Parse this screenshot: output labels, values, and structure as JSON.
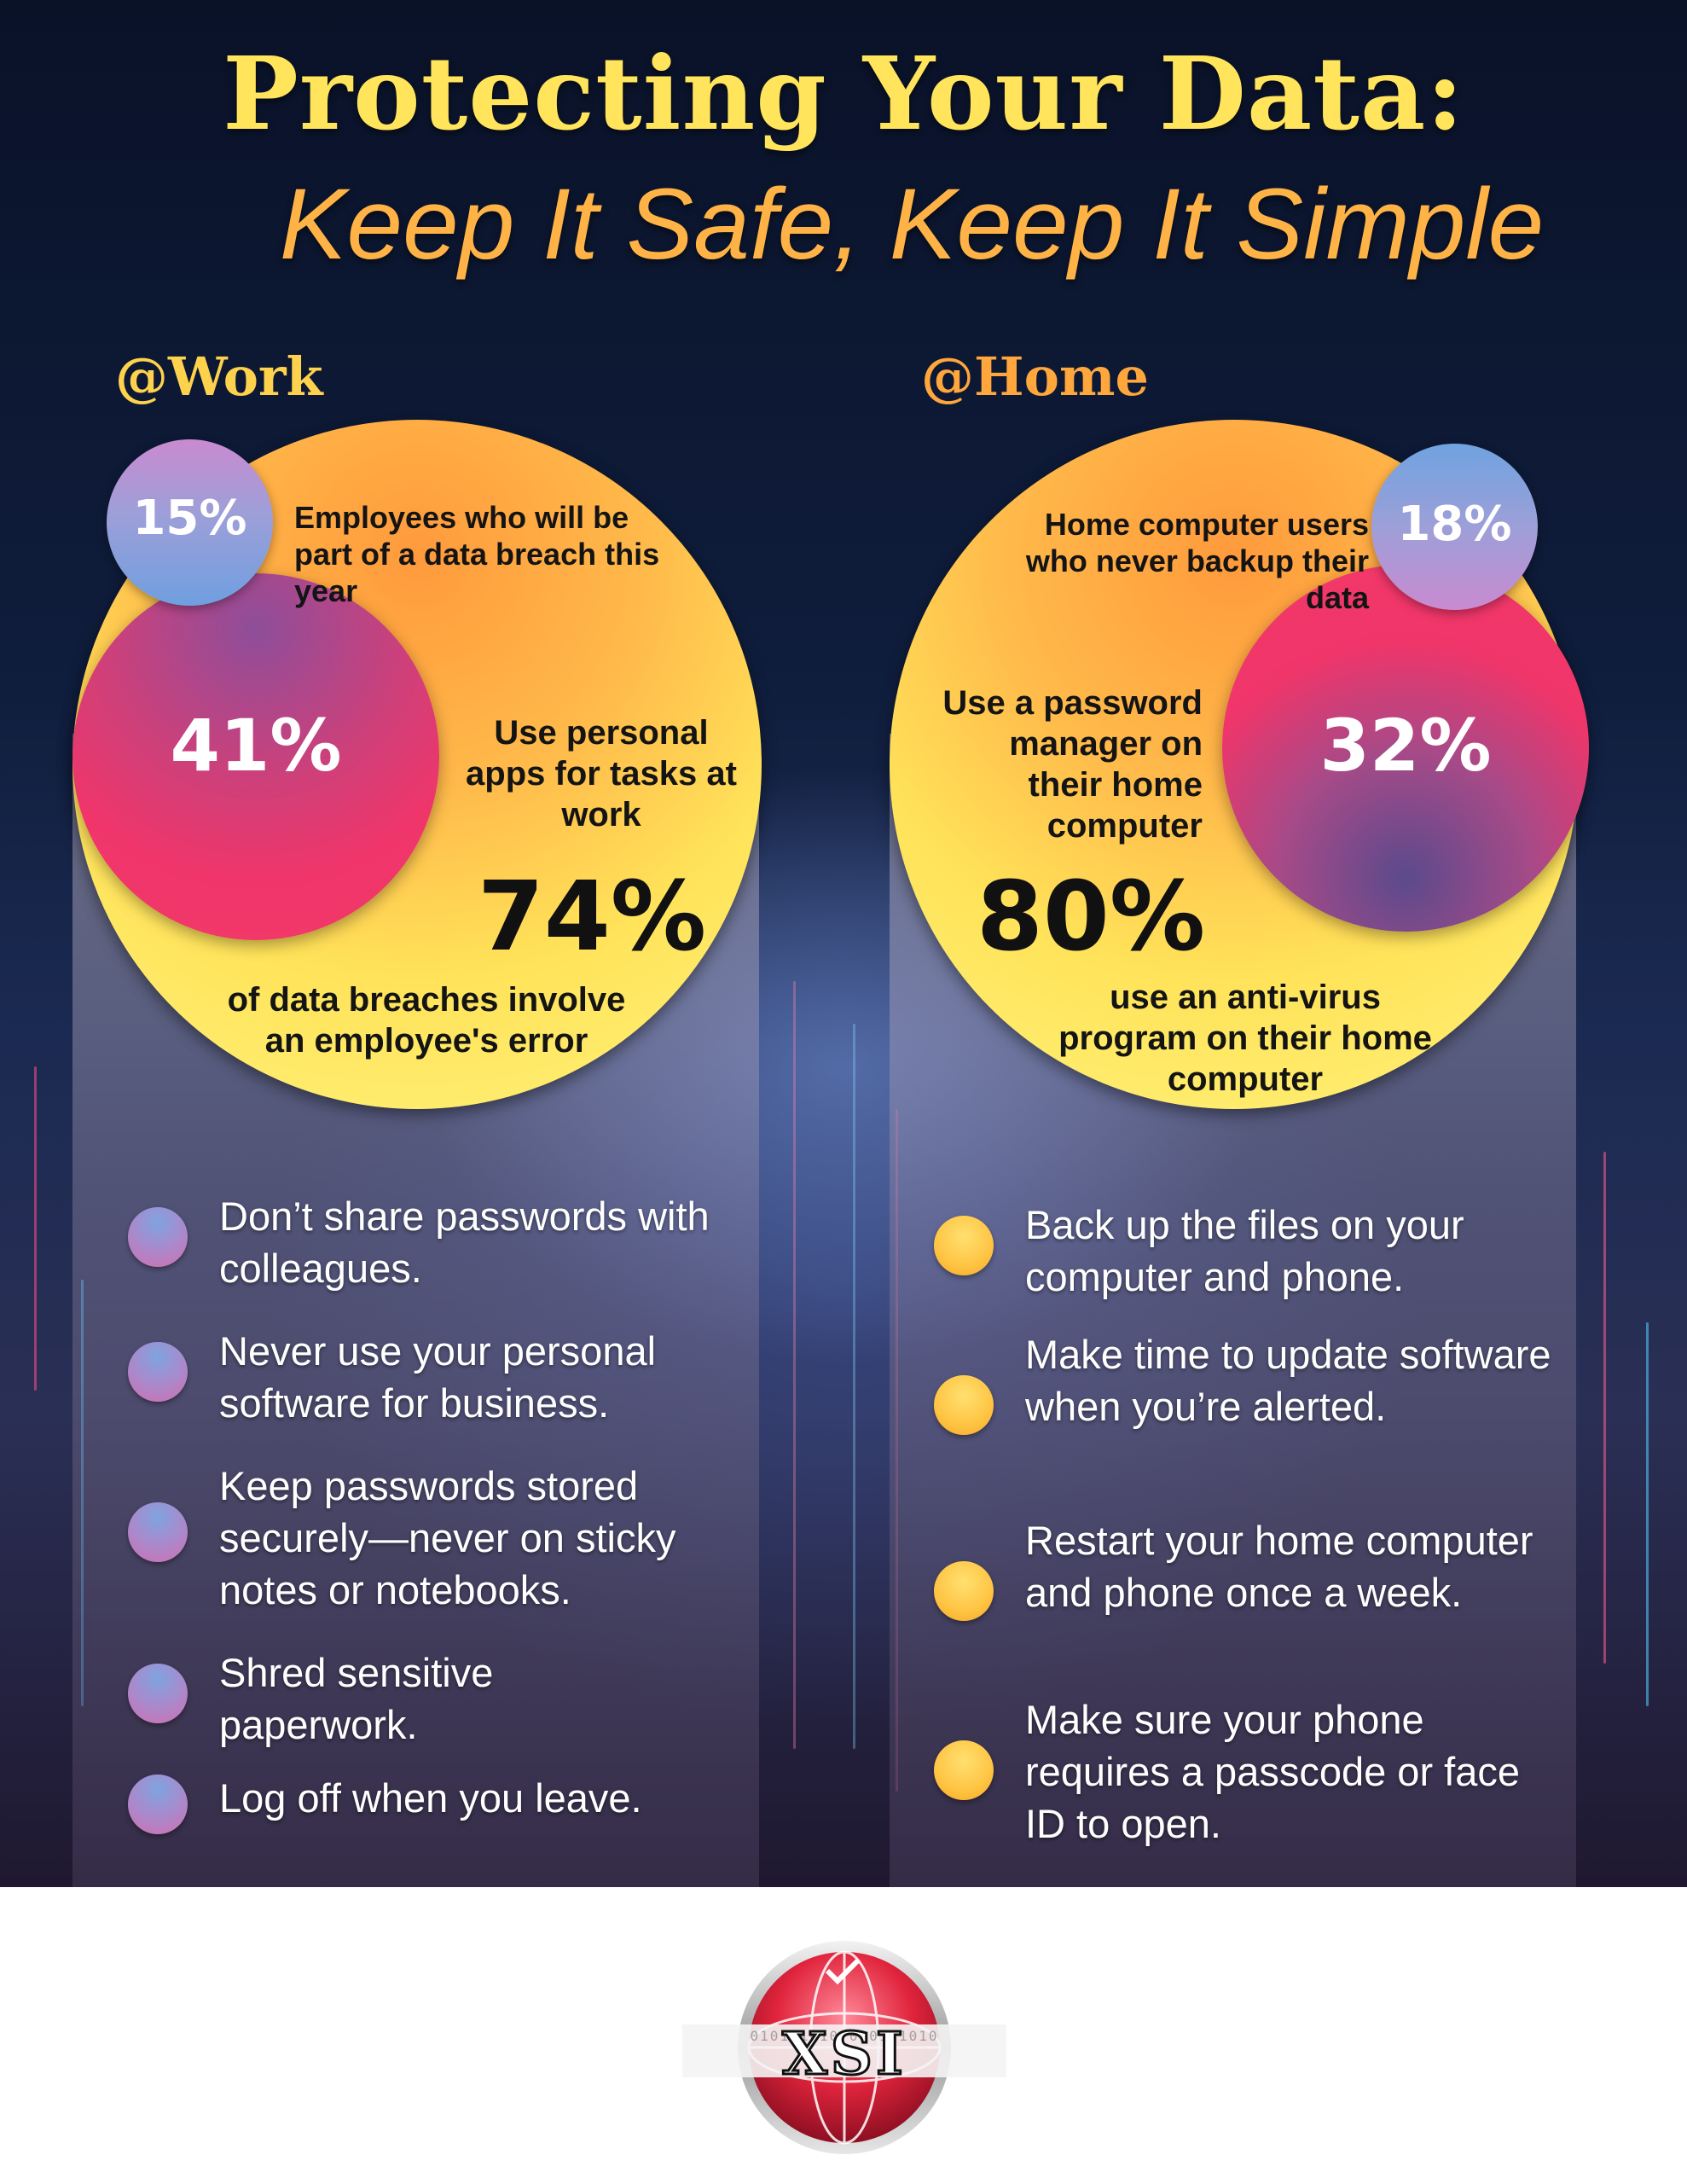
{
  "title": {
    "line1": "Protecting Your Data:",
    "line2": "Keep It Safe, Keep It Simple"
  },
  "colors": {
    "title_yellow": "#ffe45c",
    "title_orange": "#ffb347",
    "accent_pink": "#f0356a",
    "accent_blue": "#7fa3e0",
    "circle_yellow": "#ffe35a"
  },
  "work": {
    "heading": "@Work",
    "stat_small": {
      "value": "15%",
      "text": "Employees who will be part of a data breach this year"
    },
    "stat_mid": {
      "value": "41%",
      "text": "Use personal apps for tasks at work"
    },
    "stat_big": {
      "value": "74%",
      "text": "of data breaches involve an employee's error"
    },
    "tips": [
      "Don’t share passwords with colleagues.",
      "Never use your personal software for business.",
      "Keep passwords stored securely—never on sticky notes or notebooks.",
      "Shred sensitive paperwork.",
      "Log off when you leave."
    ]
  },
  "home": {
    "heading": "@Home",
    "stat_small": {
      "value": "18%",
      "text": "Home computer users who never backup their data"
    },
    "stat_mid": {
      "value": "32%",
      "text": "Use a password manager on their home computer"
    },
    "stat_big": {
      "value": "80%",
      "text": "use an anti-virus program on their home computer"
    },
    "tips": [
      "Back up the files on your computer and phone.",
      "Make time to update software when you’re alerted.",
      "Restart your home computer and phone once a week.",
      "Make sure your phone requires a passcode or face ID to open."
    ]
  },
  "logo": {
    "text": "XSI",
    "binary": "0101 1010 0101 1010"
  }
}
